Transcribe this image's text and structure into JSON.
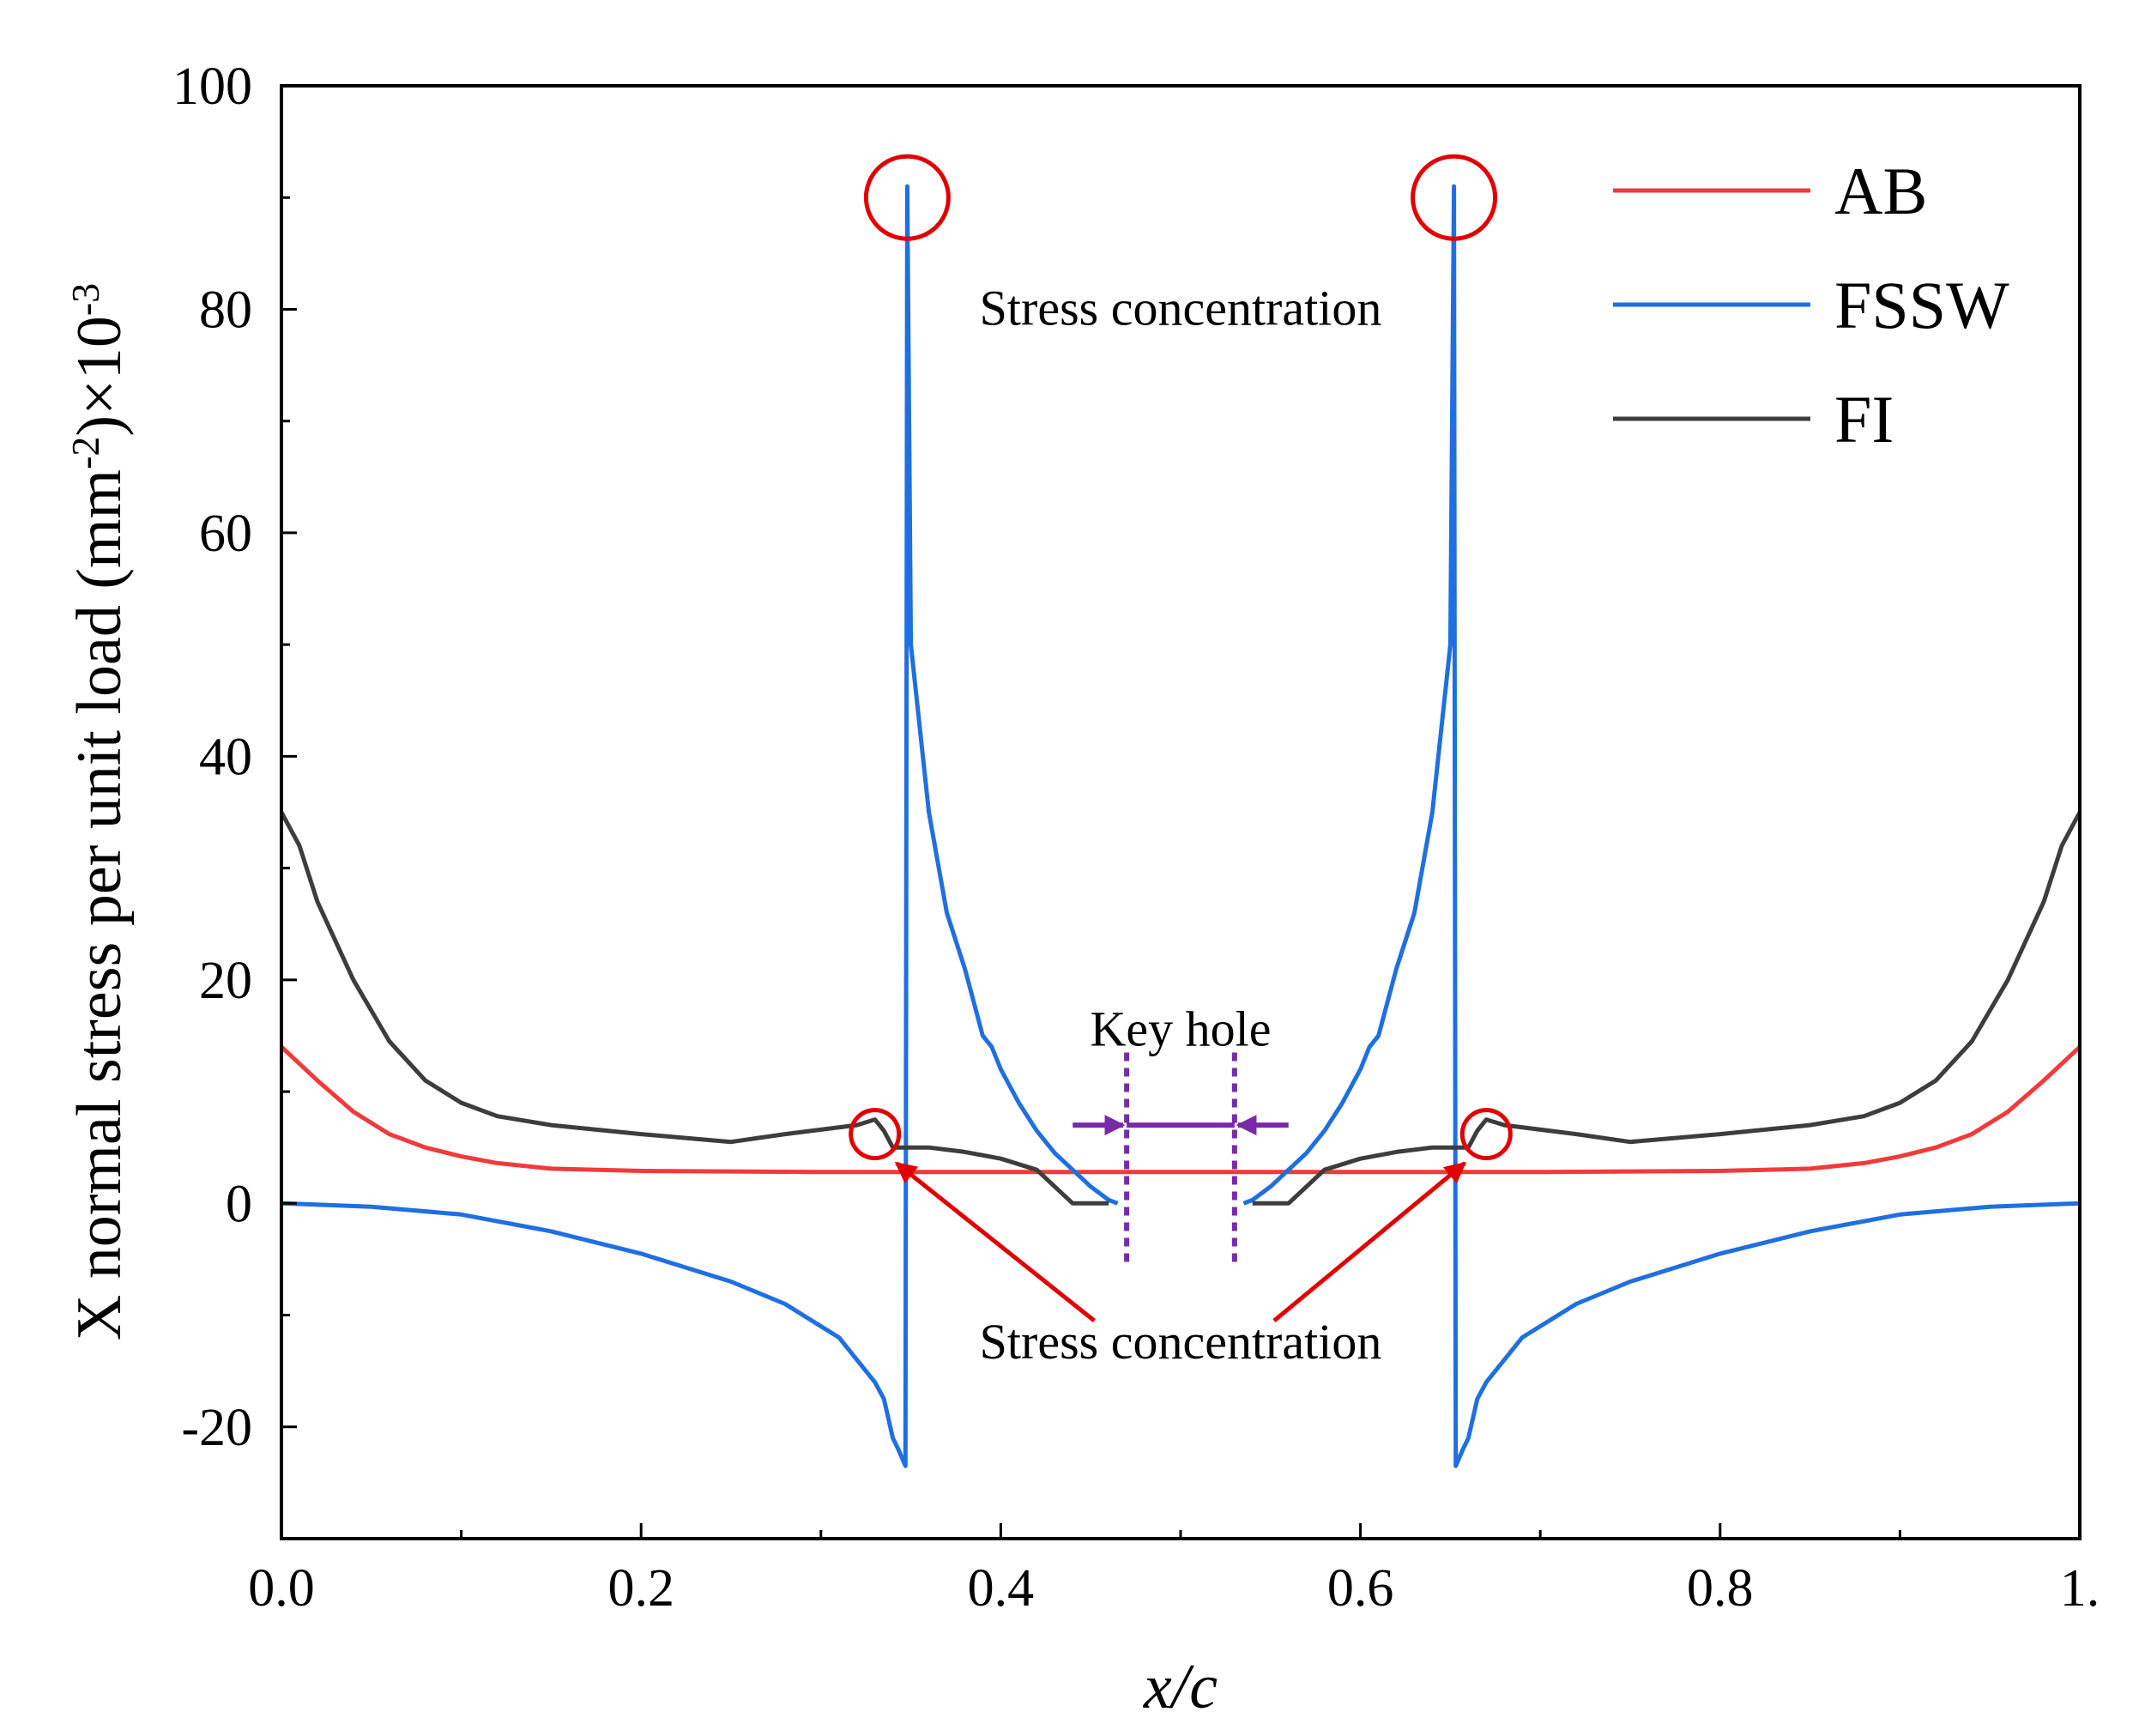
{
  "chart_data": {
    "type": "line",
    "title": "",
    "xlabel": "x/c",
    "ylabel": "X normal stress per unit load (mm",
    "ylabel_sup1": "-2",
    "ylabel_mid": ")×10",
    "ylabel_sup2": "-3",
    "xlim": [
      0,
      1
    ],
    "ylim": [
      -30,
      100
    ],
    "x_ticks": [
      0.0,
      0.2,
      0.4,
      0.6,
      0.8,
      1.0
    ],
    "x_tick_labels": [
      "0.0",
      "0.2",
      "0.4",
      "0.6",
      "0.8",
      "1."
    ],
    "y_ticks": [
      -20,
      0,
      20,
      40,
      60,
      80,
      100
    ],
    "y_tick_labels": [
      "-20",
      "0",
      "20",
      "40",
      "60",
      "80",
      "100"
    ],
    "legend_position": "top-right",
    "series": [
      {
        "name": "AB",
        "color": "#ef3b3b",
        "points": [
          [
            0,
            14
          ],
          [
            0.02,
            11
          ],
          [
            0.04,
            8.2
          ],
          [
            0.06,
            6.2
          ],
          [
            0.08,
            5
          ],
          [
            0.1,
            4.2
          ],
          [
            0.12,
            3.6
          ],
          [
            0.15,
            3.1
          ],
          [
            0.2,
            2.9
          ],
          [
            0.3,
            2.8
          ],
          [
            0.5,
            2.8
          ],
          [
            0.7,
            2.8
          ],
          [
            0.8,
            2.9
          ],
          [
            0.85,
            3.1
          ],
          [
            0.88,
            3.6
          ],
          [
            0.9,
            4.2
          ],
          [
            0.92,
            5
          ],
          [
            0.94,
            6.2
          ],
          [
            0.96,
            8.2
          ],
          [
            0.98,
            11
          ],
          [
            1,
            14
          ]
        ]
      },
      {
        "name": "FSSW",
        "color": "#1f6fe0",
        "points": [
          [
            0,
            0
          ],
          [
            0.05,
            -0.3
          ],
          [
            0.1,
            -1
          ],
          [
            0.15,
            -2.5
          ],
          [
            0.2,
            -4.5
          ],
          [
            0.25,
            -7
          ],
          [
            0.28,
            -9
          ],
          [
            0.31,
            -12
          ],
          [
            0.33,
            -16
          ],
          [
            0.335,
            -17.5
          ],
          [
            0.34,
            -21
          ],
          [
            0.343,
            -22
          ],
          [
            0.347,
            -23.5
          ],
          [
            0.348,
            91
          ],
          [
            0.35,
            50
          ],
          [
            0.36,
            35
          ],
          [
            0.37,
            26
          ],
          [
            0.38,
            21
          ],
          [
            0.39,
            15
          ],
          [
            0.395,
            14
          ],
          [
            0.4,
            12
          ],
          [
            0.41,
            9
          ],
          [
            0.42,
            6.5
          ],
          [
            0.43,
            4.5
          ],
          [
            0.44,
            3
          ],
          [
            0.45,
            1.5
          ],
          [
            0.46,
            0.3
          ],
          [
            0.465,
            0
          ]
        ]
      },
      {
        "name": "FSSW",
        "color": "#1f6fe0",
        "points": [
          [
            0.535,
            0
          ],
          [
            0.54,
            0.3
          ],
          [
            0.55,
            1.5
          ],
          [
            0.56,
            3
          ],
          [
            0.57,
            4.5
          ],
          [
            0.58,
            6.5
          ],
          [
            0.59,
            9
          ],
          [
            0.6,
            12
          ],
          [
            0.605,
            14
          ],
          [
            0.61,
            15
          ],
          [
            0.62,
            21
          ],
          [
            0.63,
            26
          ],
          [
            0.64,
            35
          ],
          [
            0.65,
            50
          ],
          [
            0.652,
            91
          ],
          [
            0.653,
            -23.5
          ],
          [
            0.657,
            -22
          ],
          [
            0.66,
            -21
          ],
          [
            0.665,
            -17.5
          ],
          [
            0.67,
            -16
          ],
          [
            0.69,
            -12
          ],
          [
            0.72,
            -9
          ],
          [
            0.75,
            -7
          ],
          [
            0.8,
            -4.5
          ],
          [
            0.85,
            -2.5
          ],
          [
            0.9,
            -1
          ],
          [
            0.95,
            -0.3
          ],
          [
            1,
            0
          ]
        ]
      },
      {
        "name": "FI",
        "color": "#3d3d3d",
        "points": [
          [
            0,
            35
          ],
          [
            0.01,
            32
          ],
          [
            0.02,
            27
          ],
          [
            0.04,
            20
          ],
          [
            0.06,
            14.5
          ],
          [
            0.08,
            11
          ],
          [
            0.1,
            9
          ],
          [
            0.12,
            7.8
          ],
          [
            0.15,
            7
          ],
          [
            0.2,
            6.2
          ],
          [
            0.25,
            5.5
          ],
          [
            0.28,
            6.2
          ],
          [
            0.32,
            7
          ],
          [
            0.33,
            7.5
          ],
          [
            0.335,
            6.5
          ],
          [
            0.34,
            5
          ],
          [
            0.36,
            5
          ],
          [
            0.38,
            4.6
          ],
          [
            0.4,
            4
          ],
          [
            0.42,
            3
          ],
          [
            0.43,
            1.5
          ],
          [
            0.44,
            0
          ],
          [
            0.45,
            0
          ],
          [
            0.46,
            0
          ],
          null,
          [
            0.54,
            0
          ],
          [
            0.55,
            0
          ],
          [
            0.56,
            0
          ],
          [
            0.57,
            1.5
          ],
          [
            0.58,
            3
          ],
          [
            0.6,
            4
          ],
          [
            0.62,
            4.6
          ],
          [
            0.64,
            5
          ],
          [
            0.66,
            5
          ],
          [
            0.665,
            6.5
          ],
          [
            0.67,
            7.5
          ],
          [
            0.68,
            7
          ],
          [
            0.72,
            6.2
          ],
          [
            0.75,
            5.5
          ],
          [
            0.8,
            6.2
          ],
          [
            0.85,
            7
          ],
          [
            0.88,
            7.8
          ],
          [
            0.9,
            9
          ],
          [
            0.92,
            11
          ],
          [
            0.94,
            14.5
          ],
          [
            0.96,
            20
          ],
          [
            0.98,
            27
          ],
          [
            0.99,
            32
          ],
          [
            1,
            35
          ]
        ]
      }
    ],
    "legend": [
      {
        "label": "AB",
        "color": "#ef3b3b"
      },
      {
        "label": "FSSW",
        "color": "#1f6fe0"
      },
      {
        "label": "FI",
        "color": "#3d3d3d"
      }
    ],
    "annotations": {
      "stress_top": "Stress concentration",
      "stress_bottom": "Stress concentration",
      "key_hole": "Key hole"
    },
    "markers": {
      "circles_large": [
        [
          0.348,
          90
        ],
        [
          0.652,
          90
        ]
      ],
      "circles_small": [
        [
          0.33,
          6.2
        ],
        [
          0.67,
          6.2
        ]
      ],
      "keyhole_lines_x": [
        0.47,
        0.53
      ],
      "keyhole_arrow_y": 7,
      "keyhole_arrow_from": [
        0.44,
        0.56
      ],
      "keyhole_line_yrange": [
        -5.5,
        13.5
      ],
      "stress_arrow_tails": [
        [
          0.452,
          -10.5
        ],
        [
          0.552,
          -10.5
        ]
      ],
      "stress_arrow_heads": [
        [
          0.342,
          3.6
        ],
        [
          0.658,
          3.6
        ]
      ],
      "annotation_color": "#e00000",
      "keyhole_color": "#7a2aa8"
    }
  }
}
